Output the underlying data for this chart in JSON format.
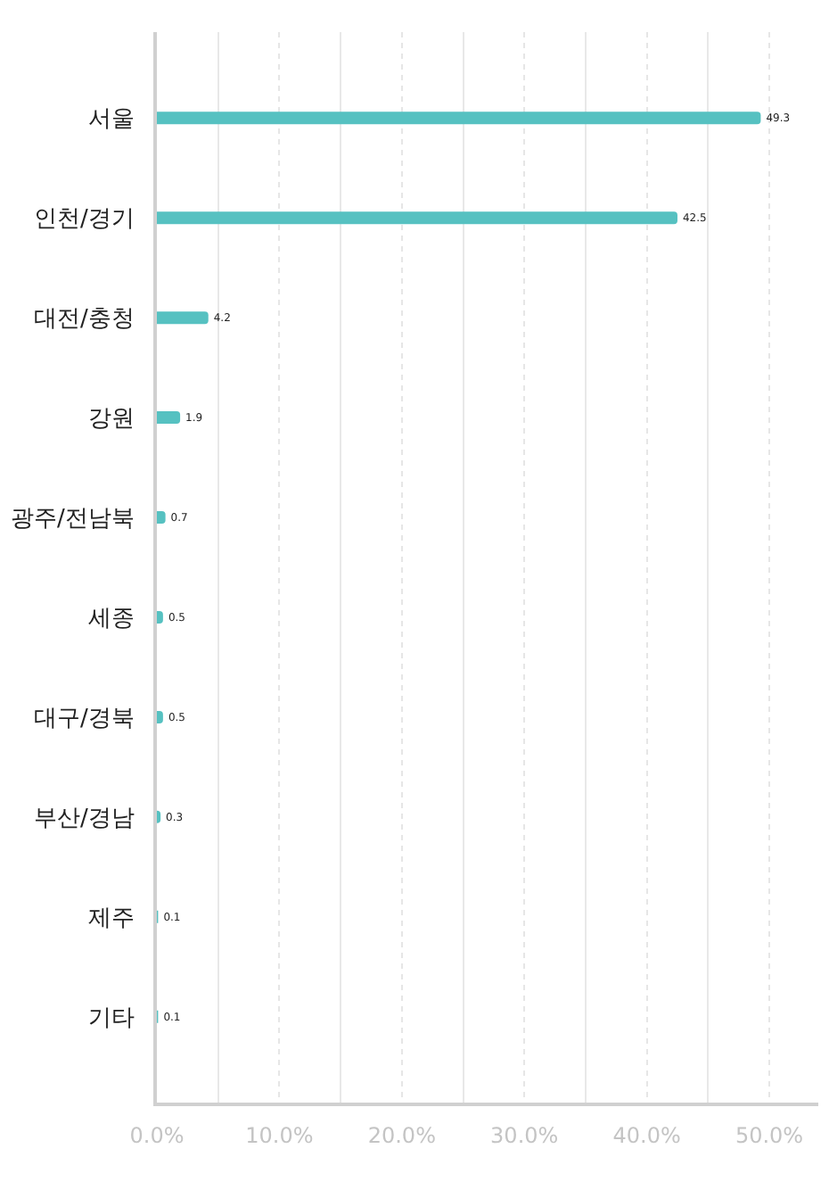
{
  "chart_data": {
    "type": "bar",
    "orientation": "horizontal",
    "categories": [
      "서울",
      "인천/경기",
      "대전/충청",
      "강원",
      "광주/전남북",
      "세종",
      "대구/경북",
      "부산/경남",
      "제주",
      "기타"
    ],
    "values": [
      49.3,
      42.5,
      4.2,
      1.9,
      0.7,
      0.5,
      0.5,
      0.3,
      0.1,
      0.1
    ],
    "color": "#56c1c1",
    "xlim": [
      0,
      54
    ],
    "xticks": [
      {
        "value": 0,
        "label": "0.0%"
      },
      {
        "value": 5,
        "label": null
      },
      {
        "value": 10,
        "label": "10.0%"
      },
      {
        "value": 15,
        "label": null
      },
      {
        "value": 20,
        "label": "20.0%"
      },
      {
        "value": 25,
        "label": null
      },
      {
        "value": 30,
        "label": "30.0%"
      },
      {
        "value": 35,
        "label": null
      },
      {
        "value": 40,
        "label": "40.0%"
      },
      {
        "value": 45,
        "label": null
      },
      {
        "value": 50,
        "label": "50.0%"
      }
    ],
    "grid": "x",
    "data_labels": true
  }
}
